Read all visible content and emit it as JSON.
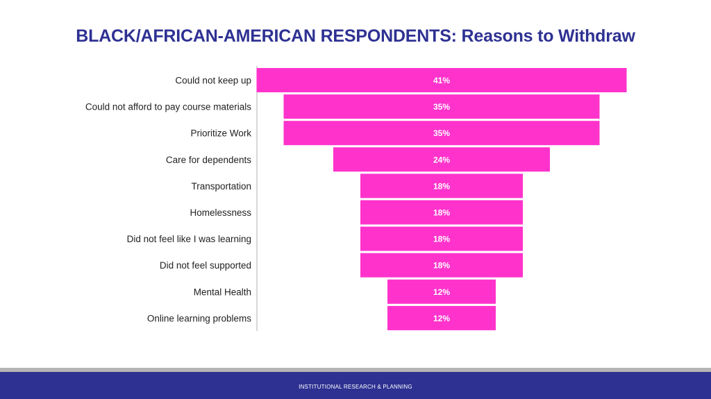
{
  "slide": {
    "title": "BLACK/AFRICAN-AMERICAN RESPONDENTS: Reasons to Withdraw",
    "footer": "INSTITUTIONAL RESEARCH & PLANNING"
  },
  "colors": {
    "title": "#2e3192",
    "bar": "#ff33cc",
    "bar_label": "#ffffff",
    "axis": "#b0b0b0",
    "category_label": "#222222",
    "footer_band": "#2e3192",
    "gray_band": "#b5b5b5"
  },
  "chart_data": {
    "type": "bar",
    "orientation": "horizontal",
    "style": "funnel",
    "title": "",
    "categories": [
      "Could not keep up",
      "Could not afford to pay course materials",
      "Prioritize Work",
      "Care for dependents",
      "Transportation",
      "Homelessness",
      "Did not feel like I was learning",
      "Did not feel supported",
      "Mental Health",
      "Online learning problems"
    ],
    "values": [
      41,
      35,
      35,
      24,
      18,
      18,
      18,
      18,
      12,
      12
    ],
    "value_labels": [
      "41%",
      "35%",
      "35%",
      "24%",
      "18%",
      "18%",
      "18%",
      "18%",
      "12%",
      "12%"
    ],
    "unit": "%",
    "xlim": [
      0,
      41
    ],
    "grid": false,
    "legend": "none"
  }
}
